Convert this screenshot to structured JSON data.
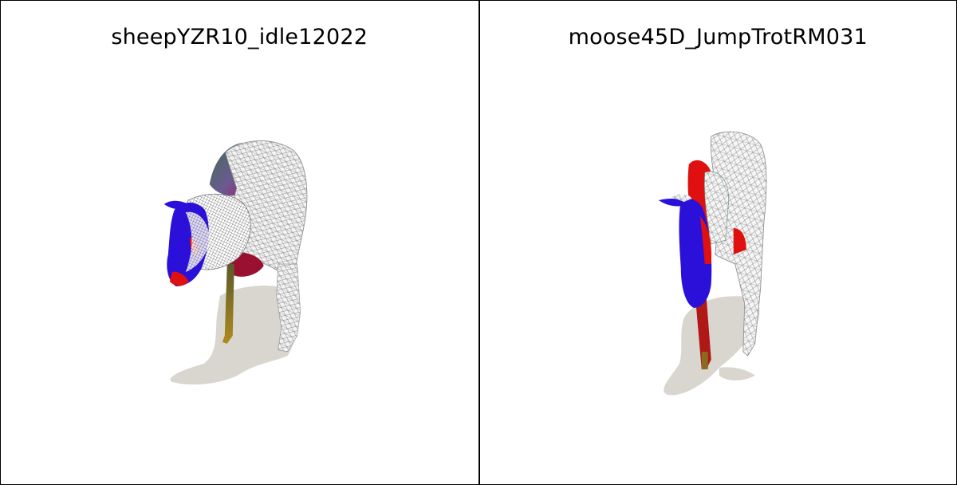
{
  "panels": [
    {
      "title": "sheepYZR10_idle12022",
      "model": "sheep",
      "render_style": "wireframe overlaid on colored surface with ground shadow"
    },
    {
      "title": "moose45D_JumpTrotRM031",
      "model": "moose",
      "render_style": "wireframe overlaid on colored surface with ground shadow"
    }
  ],
  "colors": {
    "background": "#ffffff",
    "border": "#000000",
    "shadow": "#d9d6cf",
    "highlight_blue": "#2a10d8",
    "highlight_red": "#e01010",
    "wire": "#e8e8e8"
  }
}
